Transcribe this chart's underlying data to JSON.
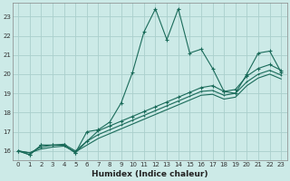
{
  "title": "",
  "xlabel": "Humidex (Indice chaleur)",
  "bg_color": "#cceae7",
  "grid_color": "#aacfcc",
  "line_color": "#1a6b5a",
  "xlim": [
    -0.5,
    23.5
  ],
  "ylim": [
    15.5,
    23.7
  ],
  "yticks": [
    16,
    17,
    18,
    19,
    20,
    21,
    22,
    23
  ],
  "xticks": [
    0,
    1,
    2,
    3,
    4,
    5,
    6,
    7,
    8,
    9,
    10,
    11,
    12,
    13,
    14,
    15,
    16,
    17,
    18,
    19,
    20,
    21,
    22,
    23
  ],
  "main_line_x": [
    0,
    1,
    2,
    3,
    4,
    5,
    6,
    7,
    8,
    9,
    10,
    11,
    12,
    13,
    14,
    15,
    16,
    17,
    18,
    19,
    20,
    21,
    22,
    23
  ],
  "main_line_y": [
    16.0,
    15.8,
    16.3,
    16.3,
    16.3,
    15.9,
    17.0,
    17.1,
    17.5,
    18.5,
    20.1,
    22.2,
    23.4,
    21.8,
    23.4,
    21.1,
    21.3,
    20.3,
    19.1,
    19.0,
    20.0,
    21.1,
    21.2,
    20.1
  ],
  "line2_x": [
    0,
    1,
    2,
    3,
    4,
    5,
    6,
    7,
    8,
    9,
    10,
    11,
    12,
    13,
    14,
    15,
    16,
    17,
    18,
    19,
    20,
    21,
    22,
    23
  ],
  "line2_y": [
    16.0,
    15.8,
    16.3,
    16.3,
    16.3,
    15.9,
    16.5,
    17.05,
    17.3,
    17.55,
    17.8,
    18.05,
    18.3,
    18.55,
    18.8,
    19.05,
    19.3,
    19.4,
    19.1,
    19.2,
    19.9,
    20.3,
    20.5,
    20.2
  ],
  "line3_x": [
    0,
    1,
    2,
    3,
    4,
    5,
    6,
    7,
    8,
    9,
    10,
    11,
    12,
    13,
    14,
    15,
    16,
    17,
    18,
    19,
    20,
    21,
    22,
    23
  ],
  "line3_y": [
    16.0,
    15.9,
    16.2,
    16.3,
    16.35,
    16.0,
    16.5,
    16.85,
    17.1,
    17.35,
    17.6,
    17.85,
    18.1,
    18.35,
    18.6,
    18.85,
    19.1,
    19.15,
    18.9,
    19.0,
    19.6,
    20.0,
    20.2,
    19.95
  ],
  "line4_x": [
    0,
    1,
    2,
    3,
    4,
    5,
    6,
    7,
    8,
    9,
    10,
    11,
    12,
    13,
    14,
    15,
    16,
    17,
    18,
    19,
    20,
    21,
    22,
    23
  ],
  "line4_y": [
    16.0,
    15.9,
    16.1,
    16.2,
    16.25,
    15.95,
    16.3,
    16.65,
    16.9,
    17.15,
    17.4,
    17.65,
    17.9,
    18.15,
    18.4,
    18.65,
    18.9,
    18.95,
    18.7,
    18.8,
    19.4,
    19.8,
    20.0,
    19.75
  ]
}
